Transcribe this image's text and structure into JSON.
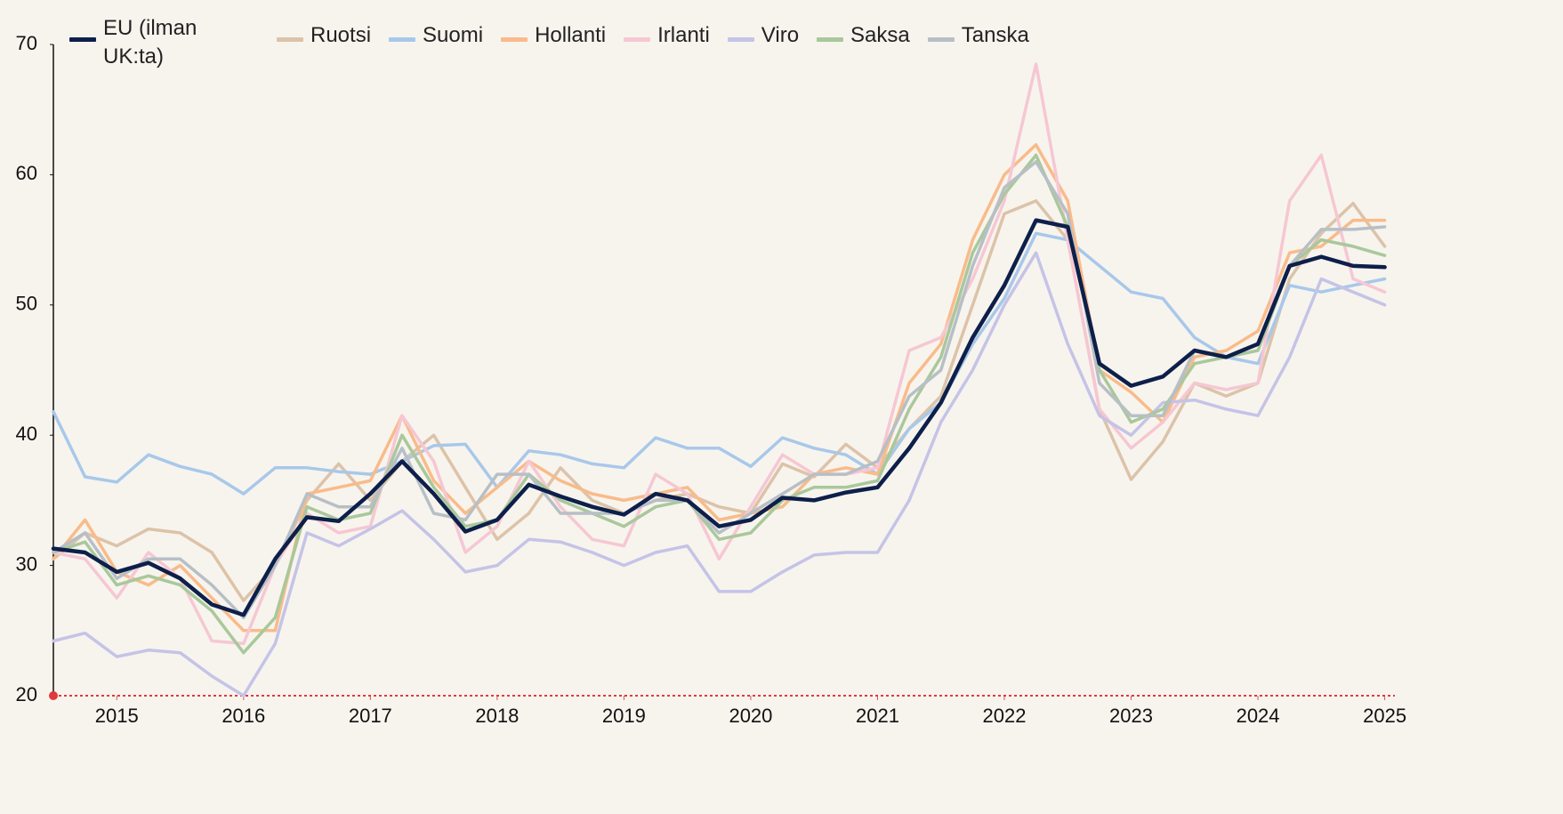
{
  "chart_data": {
    "type": "line",
    "x": [
      2014.5,
      2014.75,
      2015,
      2015.25,
      2015.5,
      2015.75,
      2016,
      2016.25,
      2016.5,
      2016.75,
      2017,
      2017.25,
      2017.5,
      2017.75,
      2018,
      2018.25,
      2018.5,
      2018.75,
      2019,
      2019.25,
      2019.5,
      2019.75,
      2020,
      2020.25,
      2020.5,
      2020.75,
      2021,
      2021.25,
      2021.5,
      2021.75,
      2022,
      2022.25,
      2022.5,
      2022.75,
      2023,
      2023.25,
      2023.5,
      2023.75,
      2024,
      2024.25,
      2024.5,
      2024.75,
      2025
    ],
    "xlim": [
      2014.5,
      2025.08
    ],
    "xticks": [
      2015,
      2016,
      2017,
      2018,
      2019,
      2020,
      2021,
      2022,
      2023,
      2024,
      2025
    ],
    "ylim": [
      20,
      70
    ],
    "yticks": [
      20,
      30,
      40,
      50,
      60,
      70
    ],
    "grid": false,
    "series": [
      {
        "name": "EU (ilman UK:ta)",
        "color": "#0d1f4a",
        "values": [
          31.3,
          31.0,
          29.5,
          30.2,
          29.0,
          27.0,
          26.2,
          30.5,
          33.7,
          33.4,
          35.5,
          38.0,
          35.5,
          32.6,
          33.5,
          36.2,
          35.3,
          34.5,
          33.9,
          35.5,
          35.0,
          33.0,
          33.5,
          35.2,
          35.0,
          35.6,
          36.0,
          39.0,
          42.5,
          47.5,
          51.5,
          56.5,
          56.0,
          45.5,
          43.8,
          44.5,
          46.5,
          46.0,
          47.0,
          53.0,
          53.7,
          53.0,
          52.9
        ]
      },
      {
        "name": "Ruotsi",
        "color": "#dcc3a8",
        "values": [
          30.5,
          32.5,
          31.5,
          32.8,
          32.5,
          31.0,
          27.3,
          30.0,
          35.0,
          37.8,
          35.0,
          38.0,
          40.0,
          36.0,
          32.0,
          34.0,
          37.5,
          35.0,
          34.0,
          35.0,
          35.5,
          34.5,
          34.0,
          37.8,
          36.8,
          39.3,
          37.5,
          40.5,
          43.0,
          50.0,
          57.0,
          58.0,
          55.0,
          42.0,
          36.6,
          39.5,
          44.0,
          43.0,
          44.0,
          52.0,
          55.5,
          57.8,
          54.5
        ]
      },
      {
        "name": "Suomi",
        "color": "#a8c8ea",
        "values": [
          41.8,
          36.8,
          36.4,
          38.5,
          37.6,
          37.0,
          35.5,
          37.5,
          37.5,
          37.2,
          37.0,
          38.0,
          39.2,
          39.3,
          36.0,
          38.8,
          38.5,
          37.8,
          37.5,
          39.8,
          39.0,
          39.0,
          37.6,
          39.8,
          39.0,
          38.5,
          37.0,
          40.5,
          42.5,
          47.0,
          50.5,
          55.5,
          55.0,
          53.0,
          51.0,
          50.5,
          47.5,
          46.0,
          45.5,
          51.5,
          51.0,
          51.5,
          52.0
        ]
      },
      {
        "name": "Hollanti",
        "color": "#f9bb8a",
        "values": [
          30.5,
          33.5,
          29.5,
          28.5,
          30.0,
          27.5,
          25.0,
          25.0,
          35.5,
          36.0,
          36.5,
          41.5,
          36.5,
          34.0,
          36.0,
          38.0,
          36.5,
          35.5,
          35.0,
          35.5,
          36.0,
          33.5,
          34.0,
          34.5,
          37.0,
          37.5,
          37.0,
          44.0,
          47.0,
          55.0,
          60.0,
          62.3,
          58.0,
          45.0,
          43.3,
          41.0,
          46.0,
          46.5,
          48.0,
          54.0,
          54.5,
          56.5,
          56.5
        ]
      },
      {
        "name": "Irlanti",
        "color": "#f6c7d3",
        "values": [
          31,
          30.5,
          27.5,
          31,
          29,
          24.2,
          24,
          30,
          34,
          32.5,
          33,
          41.5,
          38,
          31,
          33,
          38,
          34.5,
          32,
          31.5,
          37,
          35.5,
          30.5,
          34.5,
          38.5,
          37,
          37,
          37.5,
          46.5,
          47.5,
          52,
          58,
          68.5,
          55,
          42,
          39,
          41,
          44,
          43.5,
          44,
          58,
          61.5,
          52,
          51
        ]
      },
      {
        "name": "Viro",
        "color": "#c5c3e6",
        "values": [
          24.2,
          24.8,
          23,
          23.5,
          23.3,
          21.5,
          20,
          24,
          32.5,
          31.5,
          32.8,
          34.2,
          32,
          29.5,
          30,
          32,
          31.8,
          31,
          30,
          31,
          31.5,
          28,
          28,
          29.5,
          30.8,
          31,
          31,
          35,
          41,
          45,
          50,
          54,
          47,
          41.5,
          40,
          42.5,
          42.7,
          42,
          41.5,
          46,
          52,
          51,
          50
        ]
      },
      {
        "name": "Saksa",
        "color": "#a9c89b",
        "values": [
          31,
          31.8,
          28.5,
          29.2,
          28.5,
          26.5,
          23.3,
          26,
          34.5,
          33.5,
          34,
          40,
          36,
          33,
          33.5,
          37,
          35,
          34,
          33,
          34.5,
          35,
          32,
          32.5,
          35,
          36,
          36,
          36.5,
          42,
          46,
          54,
          58.5,
          61.5,
          56,
          45,
          41,
          42,
          45.5,
          46,
          46.5,
          53,
          55,
          54.5,
          53.8
        ]
      },
      {
        "name": "Tanska",
        "color": "#b7bfc6",
        "values": [
          31,
          32.5,
          29,
          30.5,
          30.5,
          28.5,
          26,
          30,
          35.5,
          34.5,
          34.5,
          39,
          34,
          33.5,
          37,
          37,
          34,
          34,
          34,
          35,
          35,
          32.5,
          34,
          35.5,
          37,
          37,
          38,
          43,
          45,
          53,
          59,
          61,
          57,
          44,
          41.5,
          41.5,
          46.5,
          46,
          47,
          53,
          55.8,
          55.8,
          56
        ]
      }
    ]
  }
}
